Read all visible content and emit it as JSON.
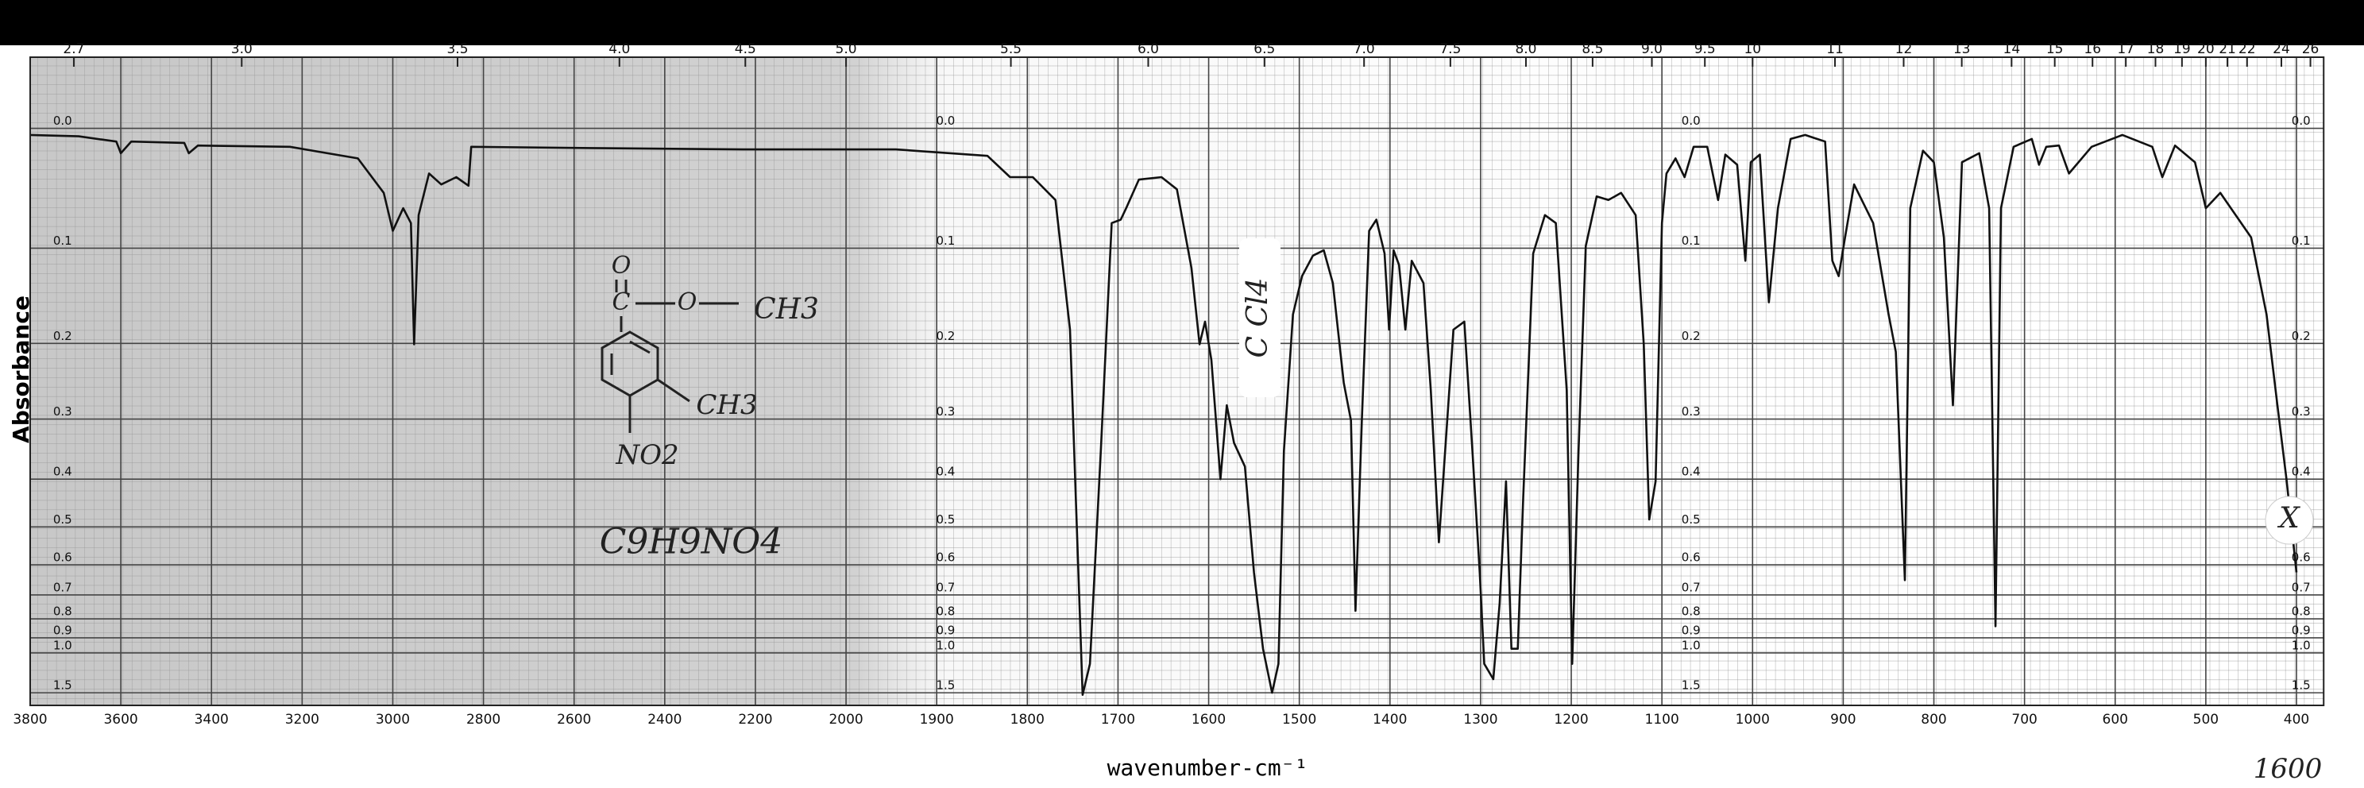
{
  "chart_data": {
    "type": "line",
    "xlabel": "wavenumber-cm⁻¹",
    "ylabel": "Absorbance",
    "xlim": [
      3800,
      370
    ],
    "xticks": [
      3800,
      3600,
      3400,
      3200,
      3000,
      2800,
      2600,
      2400,
      2200,
      2000,
      1900,
      1800,
      1700,
      1600,
      1500,
      1400,
      1300,
      1200,
      1100,
      1000,
      900,
      800,
      700,
      600,
      500,
      400
    ],
    "x2ticks": [
      2.7,
      {
        "value": 3,
        "label": "3.0"
      },
      3.5,
      {
        "value": 4,
        "label": "4.0"
      },
      4.5,
      {
        "value": 5,
        "label": "5.0"
      },
      5.5,
      {
        "value": 6,
        "label": "6.0"
      },
      6.5,
      {
        "value": 7,
        "label": "7.0"
      },
      7.5,
      {
        "value": 8,
        "label": "8.0"
      },
      8.5,
      {
        "value": 9,
        "label": "9.0"
      },
      9.5,
      10,
      11,
      12,
      13,
      14,
      15,
      16,
      17,
      18,
      19,
      20,
      21,
      22,
      24,
      26
    ],
    "yscale": "absorbance",
    "ylim": [
      -0.05,
      2
    ],
    "yticks": [
      {
        "value": 0,
        "label": "0.0"
      },
      0.1,
      0.2,
      0.3,
      0.4,
      0.5,
      0.6,
      0.7,
      0.8,
      0.9,
      {
        "value": 1,
        "label": "1.0"
      },
      1.5
    ],
    "grid": true,
    "x": [
      3800,
      3693,
      3610,
      3600,
      3577,
      3460,
      3450,
      3430,
      3227,
      3077,
      3020,
      3000,
      2977,
      2960,
      2953,
      2943,
      2920,
      2893,
      2860,
      2833,
      2827,
      2560,
      2227,
      1945,
      1844,
      1819,
      1794,
      1769,
      1753,
      1739,
      1731,
      1719,
      1707,
      1697,
      1691,
      1677,
      1652,
      1635,
      1619,
      1610,
      1604,
      1597,
      1587,
      1580,
      1572,
      1560,
      1550,
      1540,
      1530,
      1523,
      1517,
      1507,
      1497,
      1485,
      1473,
      1463,
      1451,
      1443,
      1438,
      1431,
      1423,
      1415,
      1406,
      1401,
      1396,
      1390,
      1383,
      1376,
      1363,
      1355,
      1346,
      1338,
      1330,
      1318,
      1309,
      1301,
      1296,
      1286,
      1279,
      1272,
      1266,
      1259,
      1253,
      1242,
      1229,
      1217,
      1205,
      1199,
      1192,
      1184,
      1172,
      1159,
      1145,
      1129,
      1120,
      1114,
      1107,
      1100,
      1095,
      1085,
      1075,
      1065,
      1050,
      1038,
      1030,
      1017,
      1008,
      1002,
      992,
      982,
      972,
      958,
      942,
      920,
      912,
      905,
      898,
      888,
      867,
      850,
      842,
      832,
      826,
      812,
      800,
      789,
      779,
      769,
      750,
      739,
      732,
      726,
      712,
      692,
      684,
      676,
      662,
      651,
      626,
      592,
      559,
      548,
      534,
      512,
      500,
      484,
      450,
      433,
      421,
      411,
      400
    ],
    "series": [
      {
        "name": "spectrum",
        "color": "#111111",
        "values": [
          0.005,
          0.006,
          0.01,
          0.019,
          0.01,
          0.011,
          0.019,
          0.013,
          0.014,
          0.023,
          0.051,
          0.084,
          0.064,
          0.077,
          0.201,
          0.07,
          0.035,
          0.044,
          0.038,
          0.045,
          0.014,
          0.015,
          0.016,
          0.016,
          0.021,
          0.038,
          0.038,
          0.057,
          0.184,
          1.55,
          1.09,
          0.35,
          0.077,
          0.074,
          0.064,
          0.04,
          0.038,
          0.048,
          0.119,
          0.201,
          0.175,
          0.22,
          0.4,
          0.28,
          0.337,
          0.377,
          0.623,
          0.97,
          1.5,
          1.09,
          0.35,
          0.167,
          0.127,
          0.107,
          0.102,
          0.134,
          0.249,
          0.302,
          0.764,
          0.302,
          0.084,
          0.074,
          0.105,
          0.184,
          0.102,
          0.116,
          0.184,
          0.112,
          0.134,
          0.259,
          0.538,
          0.325,
          0.184,
          0.175,
          0.35,
          0.623,
          1.09,
          1.26,
          0.732,
          0.404,
          0.97,
          0.97,
          0.434,
          0.105,
          0.07,
          0.077,
          0.259,
          1.09,
          0.35,
          0.098,
          0.054,
          0.057,
          0.051,
          0.07,
          0.201,
          0.483,
          0.404,
          0.077,
          0.035,
          0.023,
          0.038,
          0.014,
          0.014,
          0.057,
          0.02,
          0.028,
          0.112,
          0.026,
          0.02,
          0.154,
          0.064,
          0.008,
          0.005,
          0.01,
          0.112,
          0.127,
          0.09,
          0.044,
          0.077,
          0.167,
          0.21,
          0.648,
          0.064,
          0.017,
          0.026,
          0.09,
          0.28,
          0.026,
          0.019,
          0.064,
          0.836,
          0.064,
          0.014,
          0.008,
          0.028,
          0.014,
          0.013,
          0.035,
          0.014,
          0.005,
          0.014,
          0.038,
          0.013,
          0.026,
          0.064,
          0.051,
          0.09,
          0.167,
          0.28,
          0.4,
          0.623
        ]
      }
    ],
    "annotations": [
      "C Cl4",
      "X",
      "1600",
      "C9H9NO4",
      "O",
      "C",
      "O",
      "CH3",
      "CH3",
      "NO2"
    ]
  }
}
